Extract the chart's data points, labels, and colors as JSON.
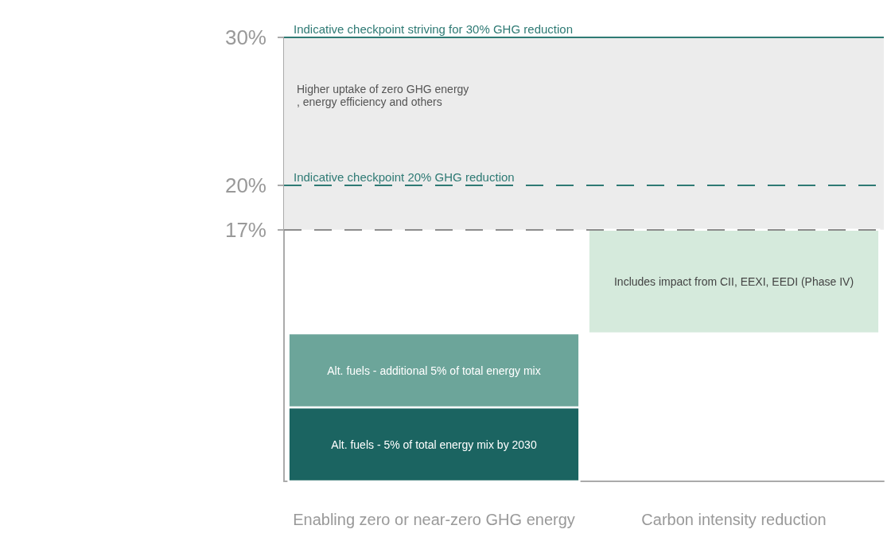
{
  "chart_data": {
    "type": "bar",
    "categories": [
      "Enabling zero or near-zero GHG energy",
      "Carbon intensity reduction"
    ],
    "series": [
      {
        "name": "Alt. fuels - 5% of total energy mix by 2030",
        "color": "#1b6461",
        "values": [
          5,
          null
        ],
        "base": [
          0,
          null
        ]
      },
      {
        "name": "Alt. fuels - additional 5% of total energy mix",
        "color": "#6ca59a",
        "values": [
          5,
          null
        ],
        "base": [
          5,
          null
        ]
      },
      {
        "name": "Includes impact from CII, EEXI, EEDI (Phase IV)",
        "color": "#d5eadc",
        "values": [
          null,
          7
        ],
        "base": [
          null,
          10
        ]
      }
    ],
    "ylim": [
      0,
      30
    ],
    "yticks": [
      {
        "value": 17,
        "label": "17%"
      },
      {
        "value": 20,
        "label": "20%"
      },
      {
        "value": 30,
        "label": "30%"
      }
    ],
    "ref_lines": [
      {
        "axis": "y",
        "value": 30,
        "label": "Indicative checkpoint striving for 30% GHG reduction",
        "color": "#2e7a74",
        "line_style": "solid"
      },
      {
        "axis": "y",
        "value": 20,
        "label": "Indicative checkpoint 20% GHG reduction",
        "color": "#2e7a74",
        "line_style": "dashed"
      },
      {
        "axis": "y",
        "value": 17,
        "label": null,
        "color": "#8c8c8c",
        "line_style": "dashed"
      }
    ],
    "bands": [
      {
        "axis": "y",
        "from": 17,
        "to": 30,
        "label": "Higher uptake of zero GHG energy, energy efficiency and others",
        "color": "#ececec"
      }
    ],
    "grid": false
  }
}
